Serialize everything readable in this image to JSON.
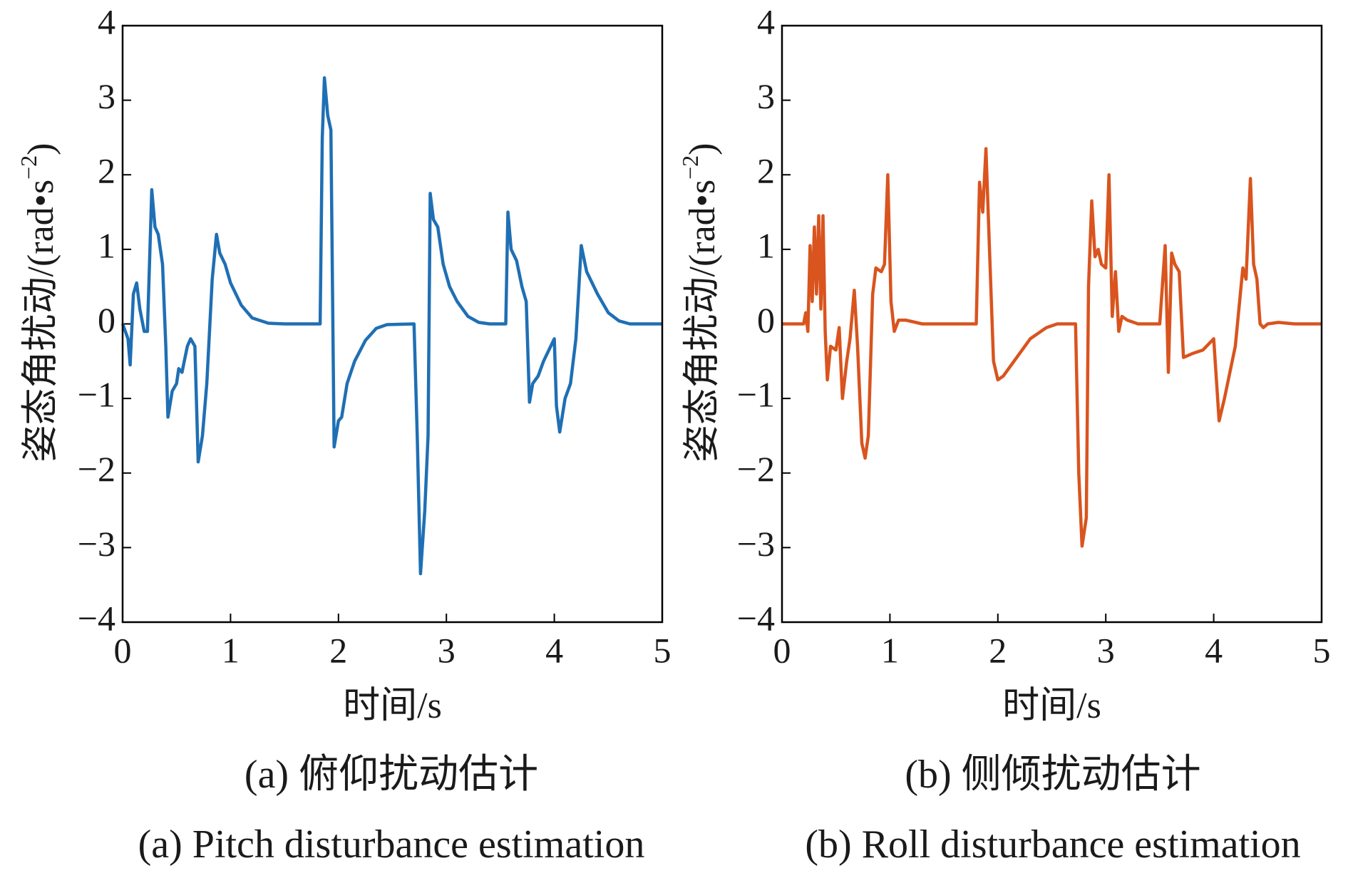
{
  "chart_data": [
    {
      "type": "line",
      "xlabel": "时间/s",
      "ylabel": [
        "姿态角扰动/(rad•s",
        "−2",
        ")"
      ],
      "caption": "(a) 俯仰扰动估计",
      "caption_en": "(a) Pitch disturbance estimation",
      "xlim": [
        0,
        5
      ],
      "xticks": [
        0,
        1,
        2,
        3,
        4,
        5
      ],
      "ylim": [
        -4,
        4
      ],
      "yticks": [
        {
          "value": -4,
          "label": "−4"
        },
        {
          "value": -3,
          "label": "−3"
        },
        {
          "value": -2,
          "label": "−2"
        },
        {
          "value": -1,
          "label": "−1"
        },
        0,
        1,
        2,
        3,
        4
      ],
      "series": [
        {
          "color": "#1f6fb4",
          "x": [
            0,
            0.05,
            0.07,
            0.1,
            0.13,
            0.16,
            0.2,
            0.23,
            0.27,
            0.3,
            0.33,
            0.37,
            0.4,
            0.42,
            0.46,
            0.5,
            0.52,
            0.55,
            0.6,
            0.63,
            0.67,
            0.7,
            0.74,
            0.78,
            0.83,
            0.87,
            0.9,
            0.95,
            1.0,
            1.1,
            1.2,
            1.35,
            1.5,
            1.83,
            1.85,
            1.87,
            1.9,
            1.93,
            1.96,
            2.0,
            2.03,
            2.08,
            2.15,
            2.25,
            2.35,
            2.45,
            2.7,
            2.73,
            2.76,
            2.8,
            2.83,
            2.85,
            2.88,
            2.92,
            2.97,
            3.03,
            3.1,
            3.2,
            3.3,
            3.4,
            3.55,
            3.57,
            3.6,
            3.65,
            3.7,
            3.74,
            3.77,
            3.8,
            3.85,
            3.9,
            4.0,
            4.02,
            4.05,
            4.1,
            4.15,
            4.2,
            4.25,
            4.3,
            4.4,
            4.5,
            4.6,
            4.7,
            5
          ],
          "values": [
            0,
            -0.2,
            -0.55,
            0.4,
            0.55,
            0.2,
            -0.1,
            -0.1,
            1.8,
            1.3,
            1.2,
            0.8,
            -0.3,
            -1.25,
            -0.9,
            -0.8,
            -0.6,
            -0.65,
            -0.3,
            -0.2,
            -0.3,
            -1.85,
            -1.5,
            -0.8,
            0.6,
            1.2,
            0.95,
            0.8,
            0.55,
            0.25,
            0.08,
            0.01,
            0,
            0,
            2.5,
            3.3,
            2.8,
            2.6,
            -1.65,
            -1.3,
            -1.25,
            -0.8,
            -0.5,
            -0.22,
            -0.06,
            -0.01,
            0,
            -1.5,
            -3.35,
            -2.5,
            -1.5,
            1.75,
            1.4,
            1.3,
            0.8,
            0.5,
            0.3,
            0.1,
            0.02,
            0,
            0,
            1.5,
            1.0,
            0.85,
            0.5,
            0.3,
            -1.05,
            -0.8,
            -0.7,
            -0.5,
            -0.2,
            -1.1,
            -1.45,
            -1.0,
            -0.8,
            -0.2,
            1.05,
            0.7,
            0.4,
            0.15,
            0.04,
            0,
            0
          ]
        }
      ]
    },
    {
      "type": "line",
      "xlabel": "时间/s",
      "ylabel": [
        "姿态角扰动/(rad•s",
        "−2",
        ")"
      ],
      "caption": "(b) 侧倾扰动估计",
      "caption_en": "(b) Roll disturbance estimation",
      "xlim": [
        0,
        5
      ],
      "xticks": [
        0,
        1,
        2,
        3,
        4,
        5
      ],
      "ylim": [
        -4,
        4
      ],
      "yticks": [
        {
          "value": -4,
          "label": "−4"
        },
        {
          "value": -3,
          "label": "−3"
        },
        {
          "value": -2,
          "label": "−2"
        },
        {
          "value": -1,
          "label": "−1"
        },
        0,
        1,
        2,
        3,
        4
      ],
      "series": [
        {
          "color": "#d9541e",
          "x": [
            0,
            0.2,
            0.22,
            0.24,
            0.26,
            0.28,
            0.3,
            0.32,
            0.34,
            0.36,
            0.38,
            0.4,
            0.42,
            0.45,
            0.5,
            0.53,
            0.56,
            0.6,
            0.63,
            0.67,
            0.7,
            0.74,
            0.77,
            0.8,
            0.84,
            0.87,
            0.92,
            0.95,
            0.98,
            1.01,
            1.04,
            1.08,
            1.15,
            1.3,
            1.8,
            1.83,
            1.86,
            1.89,
            1.92,
            1.96,
            2.0,
            2.05,
            2.15,
            2.3,
            2.45,
            2.55,
            2.72,
            2.75,
            2.78,
            2.82,
            2.84,
            2.87,
            2.9,
            2.93,
            2.96,
            3.0,
            3.03,
            3.06,
            3.09,
            3.12,
            3.15,
            3.2,
            3.3,
            3.5,
            3.55,
            3.58,
            3.61,
            3.64,
            3.68,
            3.72,
            3.8,
            3.9,
            4.0,
            4.05,
            4.1,
            4.2,
            4.27,
            4.3,
            4.34,
            4.37,
            4.4,
            4.43,
            4.46,
            4.5,
            4.6,
            4.75,
            5
          ],
          "values": [
            0,
            0,
            0.15,
            -0.1,
            1.05,
            0.3,
            1.3,
            0.4,
            1.45,
            0.2,
            1.45,
            -0.1,
            -0.75,
            -0.3,
            -0.35,
            -0.05,
            -1.0,
            -0.5,
            -0.2,
            0.45,
            -0.3,
            -1.6,
            -1.8,
            -1.5,
            0.4,
            0.75,
            0.7,
            0.8,
            2.0,
            0.3,
            -0.1,
            0.05,
            0.05,
            0,
            0,
            1.9,
            1.5,
            2.35,
            1.1,
            -0.5,
            -0.75,
            -0.7,
            -0.5,
            -0.2,
            -0.05,
            0,
            0,
            -2.0,
            -2.98,
            -2.6,
            0.5,
            1.65,
            0.9,
            1.0,
            0.8,
            0.75,
            2.0,
            0.1,
            0.7,
            -0.1,
            0.1,
            0.05,
            0,
            0,
            1.05,
            -0.65,
            0.95,
            0.8,
            0.7,
            -0.45,
            -0.4,
            -0.35,
            -0.2,
            -1.3,
            -1.0,
            -0.3,
            0.75,
            0.6,
            1.95,
            0.8,
            0.6,
            0,
            -0.05,
            0,
            0.02,
            0,
            0
          ]
        }
      ]
    }
  ]
}
